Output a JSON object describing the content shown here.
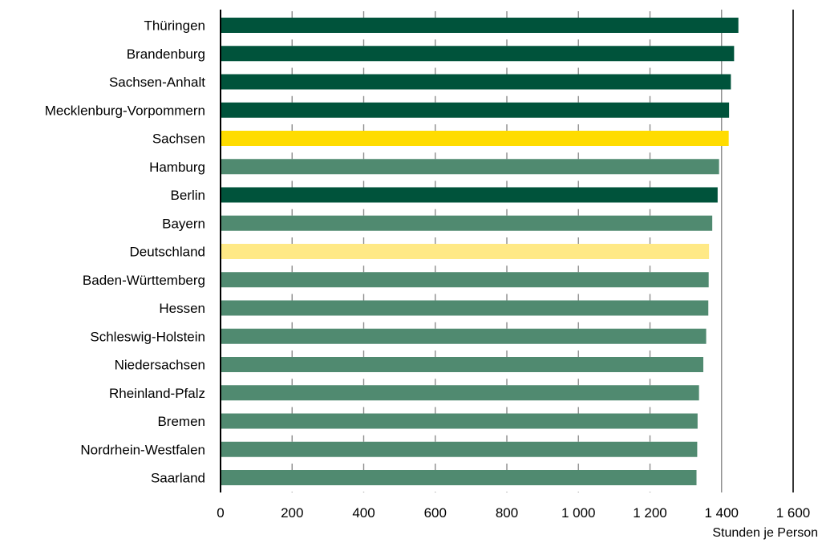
{
  "chart_data": {
    "type": "bar",
    "orientation": "horizontal",
    "categories": [
      "Thüringen",
      "Brandenburg",
      "Sachsen-Anhalt",
      "Mecklenburg-Vorpommern",
      "Sachsen",
      "Hamburg",
      "Berlin",
      "Bayern",
      "Deutschland",
      "Baden-Württemberg",
      "Hessen",
      "Schleswig-Holstein",
      "Niedersachsen",
      "Rheinland-Pfalz",
      "Bremen",
      "Nordrhein-Westfalen",
      "Saarland"
    ],
    "values": [
      1447,
      1435,
      1426,
      1421,
      1420,
      1393,
      1389,
      1374,
      1365,
      1364,
      1363,
      1357,
      1349,
      1337,
      1333,
      1332,
      1330
    ],
    "bar_groups": [
      "east",
      "east",
      "east",
      "east",
      "highlight",
      "west",
      "east",
      "west",
      "total",
      "west",
      "west",
      "west",
      "west",
      "west",
      "west",
      "west",
      "west"
    ],
    "colors": {
      "east": "#00533b",
      "west": "#508a70",
      "highlight": "#ffdc00",
      "total": "#ffe986"
    },
    "xlim": [
      0,
      1600
    ],
    "xticks": [
      0,
      200,
      400,
      600,
      800,
      1000,
      1200,
      1400,
      1600
    ],
    "xtick_labels": [
      "0",
      "200",
      "400",
      "600",
      "800",
      "1 000",
      "1 200",
      "1 400",
      "1 600"
    ],
    "xlabel": "Stunden je Person",
    "title": "",
    "grid": true
  }
}
